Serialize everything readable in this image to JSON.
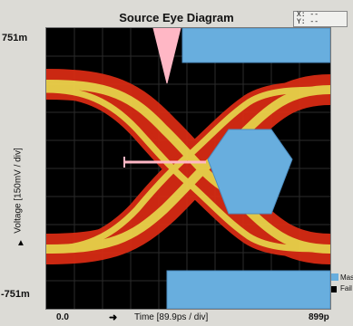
{
  "window": {
    "title": "Source Eye Diagram",
    "xy_readout": {
      "x_label": "X: --",
      "y_label": "Y: --"
    }
  },
  "y_axis": {
    "top_label": "751m",
    "bottom_label": "-751m",
    "title": "Voltage  [150mV / div]"
  },
  "x_axis": {
    "start_label": "0.0",
    "title": "Time  [89.9ps / div]",
    "end_label": "899p"
  },
  "legend": {
    "mask_label": "Mas",
    "fail_label": "Fail"
  },
  "colors": {
    "mask": "#68aede",
    "eye_outer": "#d62b13",
    "eye_inner": "#f0d24a",
    "marker": "#ffb7c5",
    "plot_bg": "#000000",
    "grid": "#2b2b2b"
  }
}
